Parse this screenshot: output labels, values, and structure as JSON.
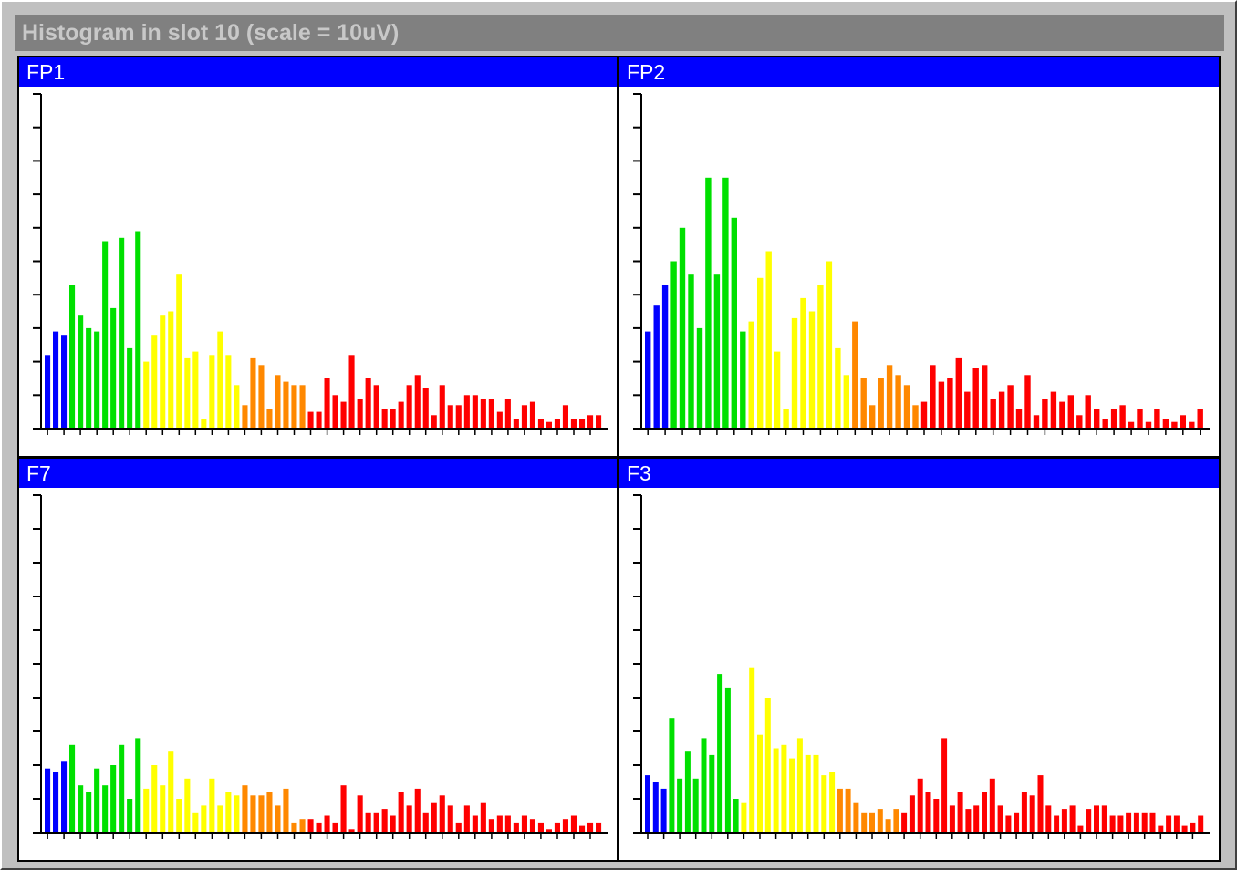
{
  "window": {
    "title": "Histogram in slot 10  (scale = 10uV)"
  },
  "colors": {
    "background": "#ffffff",
    "header": "#0000ff",
    "header_text": "#ffffff",
    "axis": "#000000",
    "bands": [
      "#0000ff",
      "#00e000",
      "#ffff00",
      "#ff8800",
      "#ff0000"
    ]
  },
  "chart_data": [
    {
      "type": "bar",
      "title": "FP1",
      "y_ticks": 10,
      "band_sizes": [
        3,
        9,
        12,
        8,
        30
      ],
      "values": [
        2.2,
        2.9,
        2.8,
        4.3,
        3.4,
        3.0,
        2.9,
        5.6,
        3.6,
        5.7,
        2.4,
        5.9,
        2.0,
        2.8,
        3.4,
        3.5,
        4.6,
        2.1,
        2.3,
        0.3,
        2.2,
        2.9,
        2.2,
        1.3,
        0.7,
        2.1,
        1.9,
        0.6,
        1.6,
        1.4,
        1.3,
        1.3,
        0.5,
        0.5,
        1.5,
        1.0,
        0.8,
        2.2,
        0.9,
        1.5,
        1.3,
        0.6,
        0.6,
        0.8,
        1.3,
        1.6,
        1.2,
        0.4,
        1.3,
        0.7,
        0.7,
        1.0,
        1.0,
        0.9,
        0.9,
        0.5,
        0.9,
        0.3,
        0.7,
        0.8,
        0.3,
        0.2,
        0.3,
        0.7,
        0.3,
        0.3,
        0.4,
        0.4
      ]
    },
    {
      "type": "bar",
      "title": "FP2",
      "y_ticks": 10,
      "band_sizes": [
        3,
        9,
        12,
        8,
        30
      ],
      "values": [
        2.9,
        3.7,
        4.3,
        5.0,
        6.0,
        4.6,
        3.0,
        7.5,
        4.6,
        7.5,
        6.3,
        2.9,
        3.2,
        4.5,
        5.3,
        2.3,
        0.6,
        3.3,
        3.9,
        3.5,
        4.3,
        5.0,
        2.4,
        1.6,
        3.2,
        1.5,
        0.7,
        1.5,
        1.9,
        1.6,
        1.3,
        0.7,
        0.8,
        1.9,
        1.4,
        1.5,
        2.1,
        1.1,
        1.8,
        1.9,
        0.9,
        1.1,
        1.3,
        0.6,
        1.6,
        0.4,
        0.9,
        1.1,
        0.8,
        1.0,
        0.4,
        1.0,
        0.6,
        0.3,
        0.6,
        0.7,
        0.2,
        0.6,
        0.2,
        0.6,
        0.3,
        0.2,
        0.4,
        0.2,
        0.6
      ]
    },
    {
      "type": "bar",
      "title": "F7",
      "y_ticks": 10,
      "band_sizes": [
        3,
        9,
        12,
        8,
        30
      ],
      "values": [
        1.9,
        1.8,
        2.1,
        2.6,
        1.4,
        1.2,
        1.9,
        1.4,
        2.0,
        2.6,
        1.0,
        2.8,
        1.3,
        2.0,
        1.4,
        2.4,
        1.0,
        1.6,
        0.6,
        0.8,
        1.6,
        0.8,
        1.2,
        1.1,
        1.4,
        1.1,
        1.1,
        1.2,
        0.8,
        1.3,
        0.3,
        0.4,
        0.4,
        0.3,
        0.5,
        0.3,
        1.4,
        0.1,
        1.1,
        0.6,
        0.6,
        0.7,
        0.5,
        1.2,
        0.8,
        1.3,
        0.6,
        0.9,
        1.1,
        0.8,
        0.3,
        0.8,
        0.5,
        0.9,
        0.4,
        0.5,
        0.5,
        0.3,
        0.5,
        0.4,
        0.3,
        0.1,
        0.3,
        0.4,
        0.5,
        0.2,
        0.3,
        0.3
      ]
    },
    {
      "type": "bar",
      "title": "F3",
      "y_ticks": 10,
      "band_sizes": [
        3,
        9,
        12,
        8,
        30
      ],
      "values": [
        1.7,
        1.5,
        1.3,
        3.4,
        1.6,
        2.4,
        1.6,
        2.8,
        2.3,
        4.7,
        4.3,
        1.0,
        0.9,
        4.9,
        2.9,
        4.0,
        2.5,
        2.6,
        2.2,
        2.8,
        2.3,
        2.3,
        1.7,
        1.8,
        1.3,
        1.3,
        0.9,
        0.6,
        0.6,
        0.7,
        0.4,
        0.7,
        0.6,
        1.1,
        1.6,
        1.2,
        1.0,
        2.8,
        0.8,
        1.2,
        0.7,
        0.8,
        1.2,
        1.6,
        0.8,
        0.5,
        0.6,
        1.2,
        1.1,
        1.7,
        0.8,
        0.5,
        0.7,
        0.8,
        0.2,
        0.7,
        0.8,
        0.8,
        0.5,
        0.5,
        0.6,
        0.6,
        0.6,
        0.6,
        0.2,
        0.5,
        0.5,
        0.2,
        0.3,
        0.5
      ]
    }
  ]
}
